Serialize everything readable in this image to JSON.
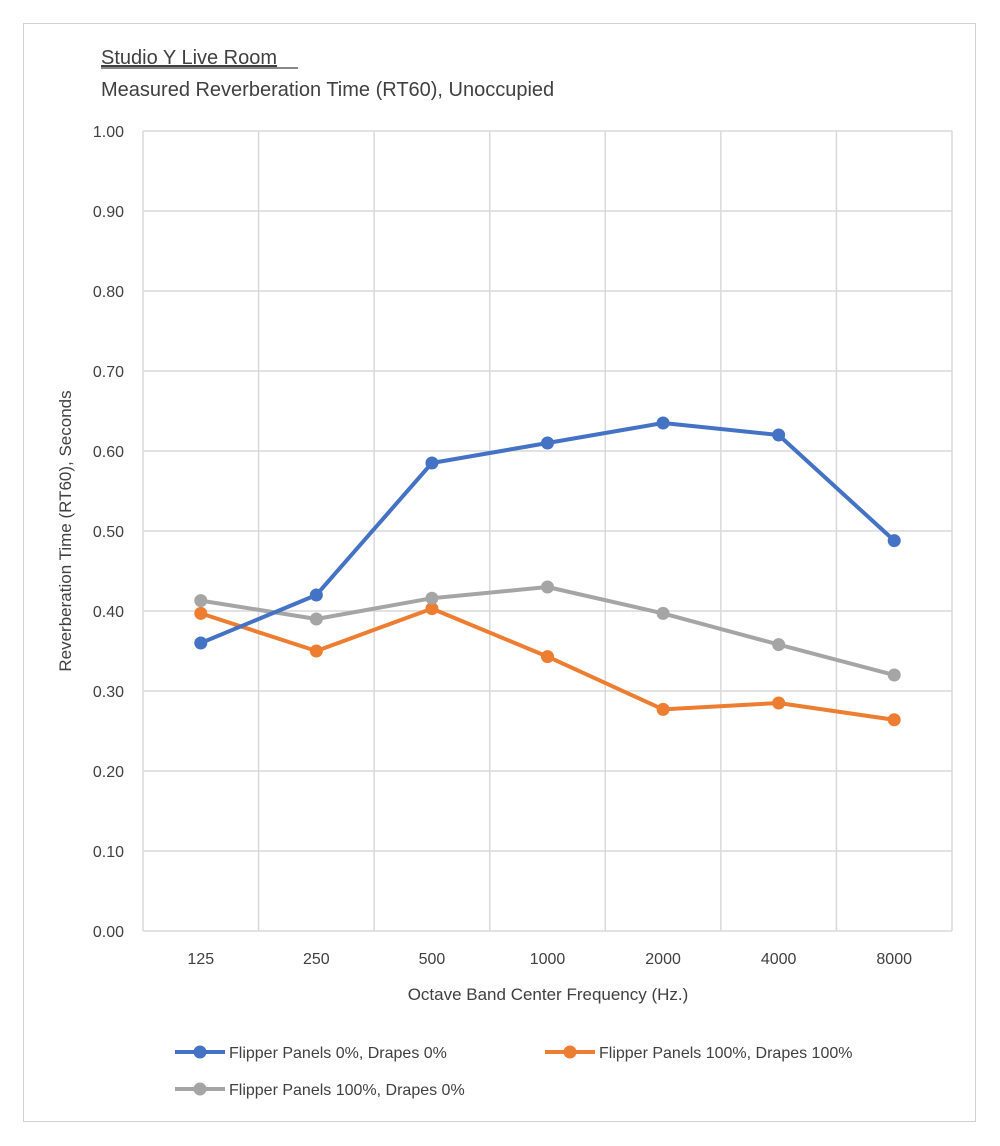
{
  "chart_data": {
    "type": "line",
    "title": "Studio Y Live Room",
    "subtitle": "Measured Reverberation Time (RT60), Unoccupied",
    "xlabel": "Octave Band Center Frequency (Hz.)",
    "ylabel": "Reverberation Time (RT60), Seconds",
    "categories": [
      "125",
      "250",
      "500",
      "1000",
      "2000",
      "4000",
      "8000"
    ],
    "ylim": [
      0,
      1
    ],
    "yticks": [
      "0.00",
      "0.10",
      "0.20",
      "0.30",
      "0.40",
      "0.50",
      "0.60",
      "0.70",
      "0.80",
      "0.90",
      "1.00"
    ],
    "grid": true,
    "legend_position": "bottom",
    "series": [
      {
        "name": "Flipper Panels 0%, Drapes 0%",
        "color": "#4472c4",
        "values": [
          0.36,
          0.42,
          0.585,
          0.61,
          0.635,
          0.62,
          0.488
        ]
      },
      {
        "name": "Flipper Panels 100%, Drapes 100%",
        "color": "#ed7d31",
        "values": [
          0.397,
          0.35,
          0.403,
          0.343,
          0.277,
          0.285,
          0.264
        ]
      },
      {
        "name": "Flipper Panels 100%, Drapes 0%",
        "color": "#a5a5a5",
        "values": [
          0.413,
          0.39,
          0.416,
          0.43,
          0.397,
          0.358,
          0.32
        ]
      }
    ]
  }
}
